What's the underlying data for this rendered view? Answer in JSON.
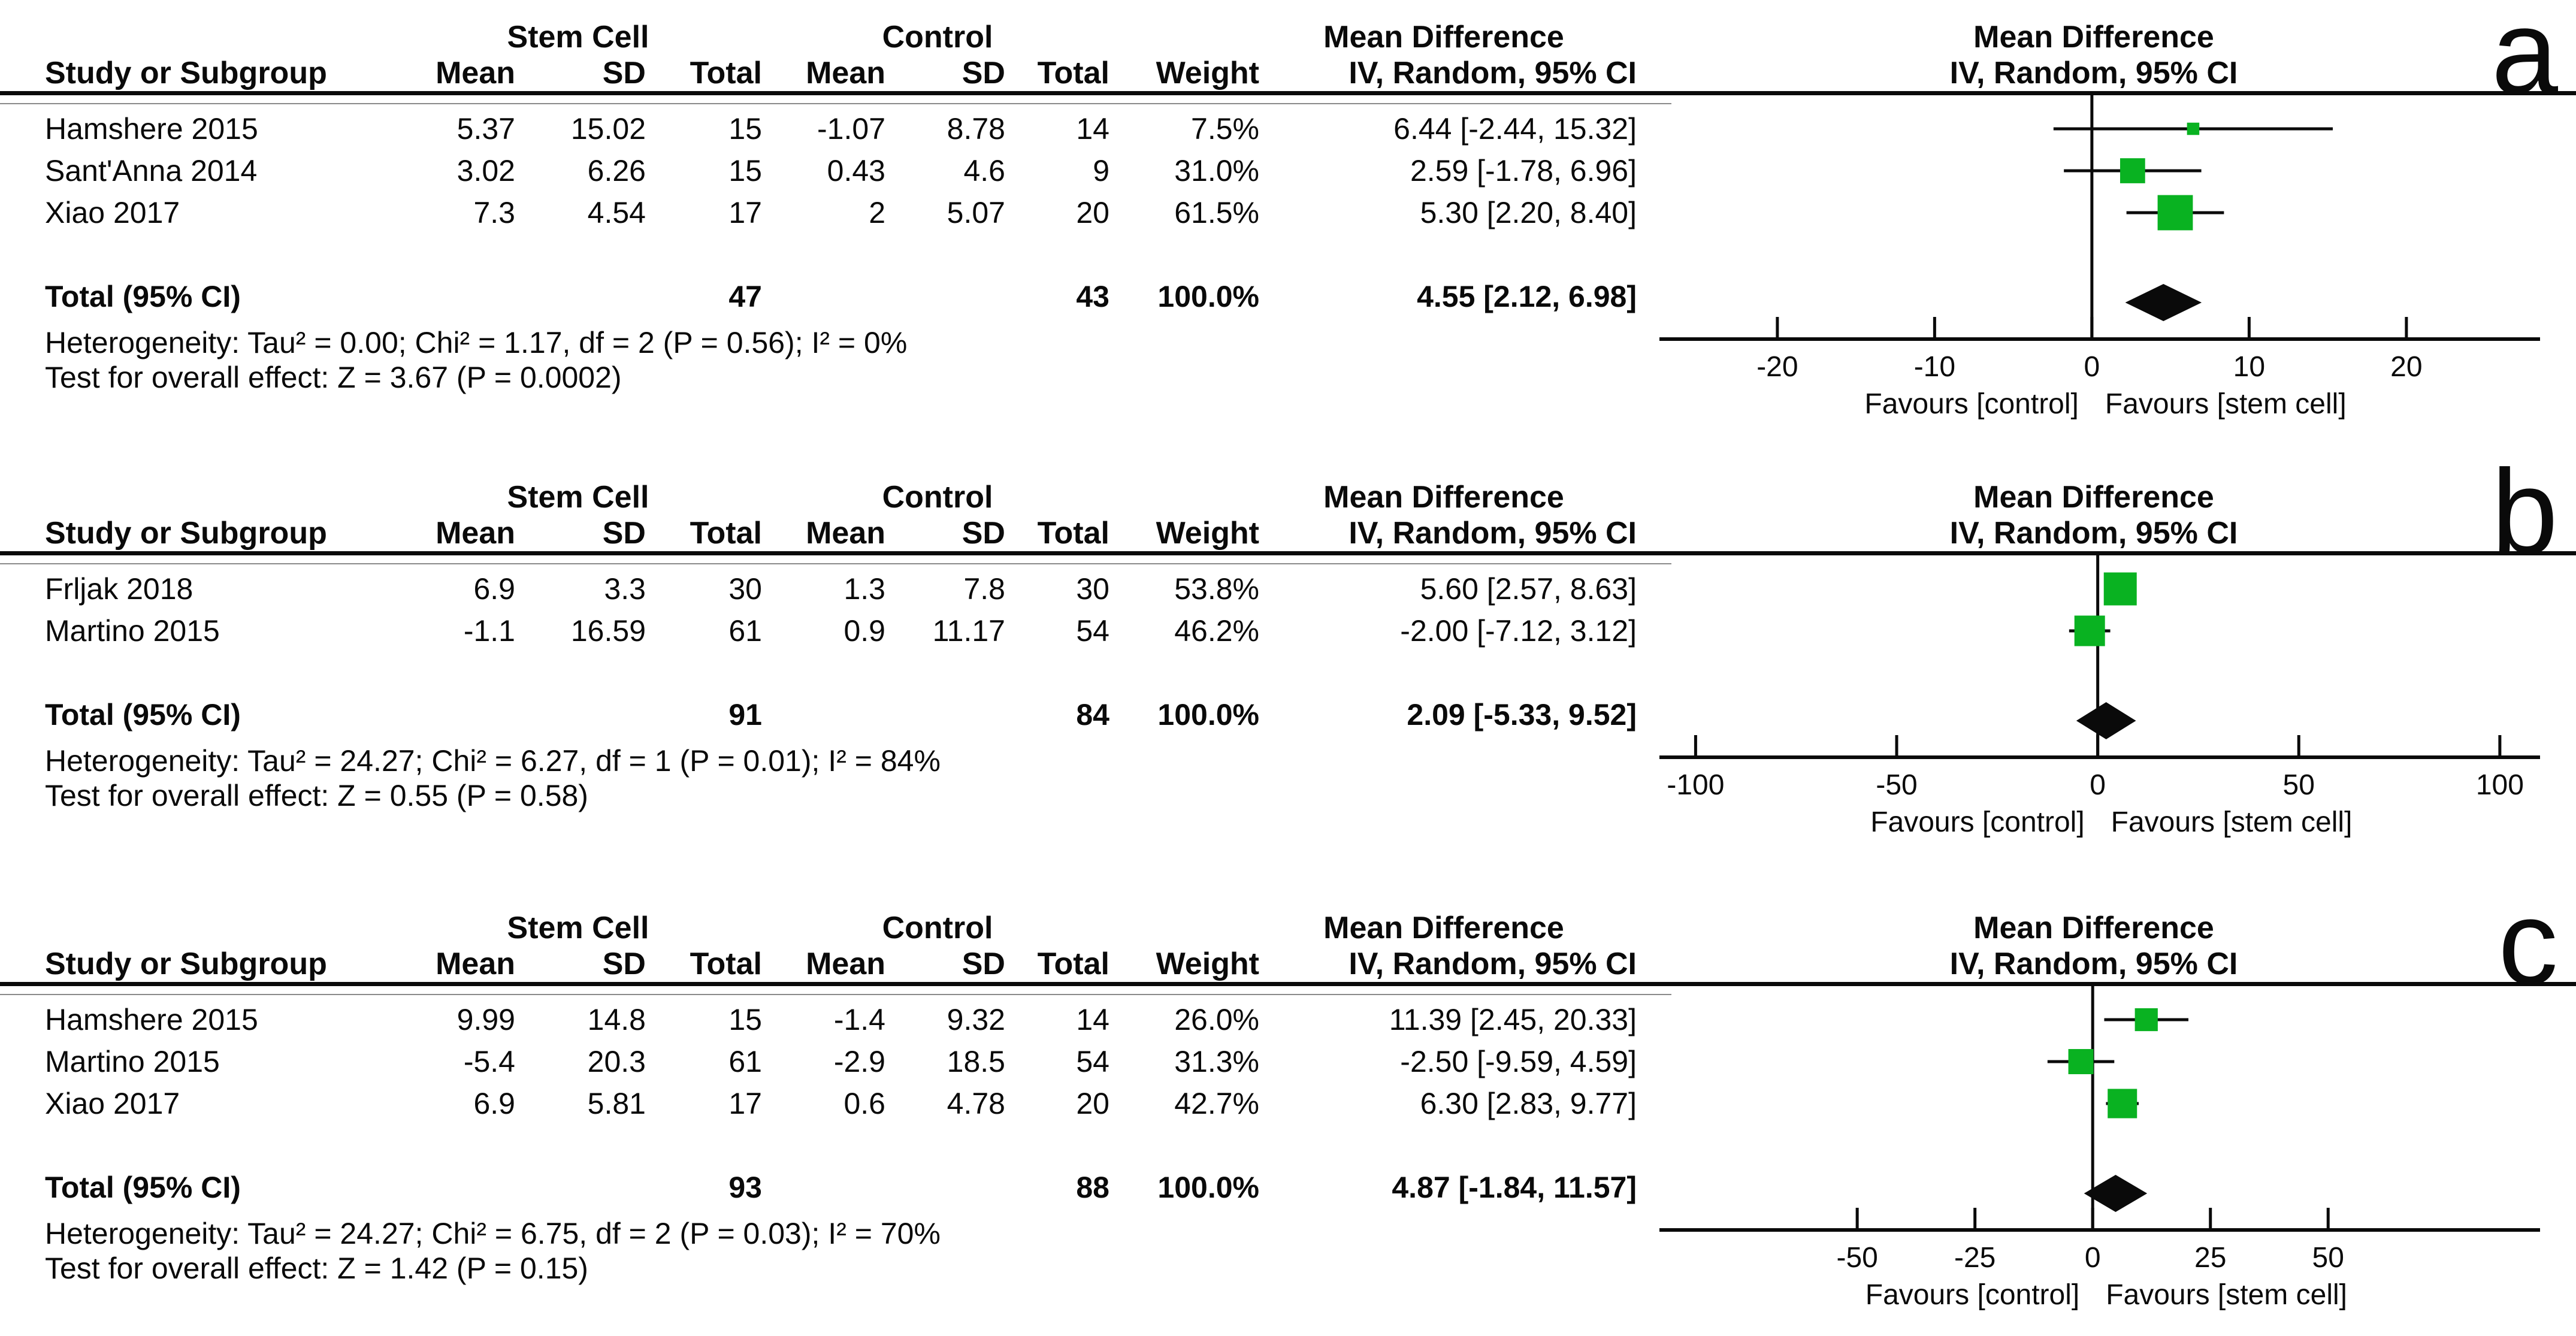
{
  "headers": {
    "study": "Study or Subgroup",
    "group1": "Stem Cell",
    "group2": "Control",
    "effect": "Mean Difference",
    "mean": "Mean",
    "sd": "SD",
    "total": "Total",
    "weight": "Weight",
    "method": "IV, Random, 95% CI"
  },
  "style": {
    "square_green": "#09b221",
    "diamond_black": "#0a0a0a",
    "axis_black": "#0a0a0a",
    "thin_rule_gray": "#8a8a8a"
  },
  "panels": [
    {
      "label": "a",
      "table": {
        "rows": [
          {
            "study": "Hamshere 2015",
            "sc_mean": "5.37",
            "sc_sd": "15.02",
            "sc_total": "15",
            "c_mean": "-1.07",
            "c_sd": "8.78",
            "c_total": "14",
            "weight": "7.5%",
            "md_ci": "6.44 [-2.44, 15.32]"
          },
          {
            "study": "Sant'Anna 2014",
            "sc_mean": "3.02",
            "sc_sd": "6.26",
            "sc_total": "15",
            "c_mean": "0.43",
            "c_sd": "4.6",
            "c_total": "9",
            "weight": "31.0%",
            "md_ci": "2.59 [-1.78, 6.96]"
          },
          {
            "study": "Xiao 2017",
            "sc_mean": "7.3",
            "sc_sd": "4.54",
            "sc_total": "17",
            "c_mean": "2",
            "c_sd": "5.07",
            "c_total": "20",
            "weight": "61.5%",
            "md_ci": "5.30 [2.20, 8.40]"
          }
        ],
        "total_row": {
          "label": "Total (95% CI)",
          "sc_total": "47",
          "c_total": "43",
          "weight": "100.0%",
          "md_ci": "4.55 [2.12, 6.98]"
        },
        "heterogeneity": "Heterogeneity: Tau² = 0.00; Chi² = 1.17, df = 2 (P = 0.56); I² = 0%",
        "overall_effect": "Test for overall effect: Z = 3.67 (P = 0.0002)"
      }
    },
    {
      "label": "b",
      "table": {
        "rows": [
          {
            "study": "Frljak 2018",
            "sc_mean": "6.9",
            "sc_sd": "3.3",
            "sc_total": "30",
            "c_mean": "1.3",
            "c_sd": "7.8",
            "c_total": "30",
            "weight": "53.8%",
            "md_ci": "5.60 [2.57, 8.63]"
          },
          {
            "study": "Martino 2015",
            "sc_mean": "-1.1",
            "sc_sd": "16.59",
            "sc_total": "61",
            "c_mean": "0.9",
            "c_sd": "11.17",
            "c_total": "54",
            "weight": "46.2%",
            "md_ci": "-2.00 [-7.12, 3.12]"
          }
        ],
        "total_row": {
          "label": "Total (95% CI)",
          "sc_total": "91",
          "c_total": "84",
          "weight": "100.0%",
          "md_ci": "2.09 [-5.33, 9.52]"
        },
        "heterogeneity": "Heterogeneity: Tau² = 24.27; Chi² = 6.27, df = 1 (P = 0.01); I² = 84%",
        "overall_effect": "Test for overall effect: Z = 0.55 (P = 0.58)"
      }
    },
    {
      "label": "c",
      "table": {
        "rows": [
          {
            "study": "Hamshere 2015",
            "sc_mean": "9.99",
            "sc_sd": "14.8",
            "sc_total": "15",
            "c_mean": "-1.4",
            "c_sd": "9.32",
            "c_total": "14",
            "weight": "26.0%",
            "md_ci": "11.39 [2.45, 20.33]"
          },
          {
            "study": "Martino 2015",
            "sc_mean": "-5.4",
            "sc_sd": "20.3",
            "sc_total": "61",
            "c_mean": "-2.9",
            "c_sd": "18.5",
            "c_total": "54",
            "weight": "31.3%",
            "md_ci": "-2.50 [-9.59, 4.59]"
          },
          {
            "study": "Xiao 2017",
            "sc_mean": "6.9",
            "sc_sd": "5.81",
            "sc_total": "17",
            "c_mean": "0.6",
            "c_sd": "4.78",
            "c_total": "20",
            "weight": "42.7%",
            "md_ci": "6.30 [2.83, 9.77]"
          }
        ],
        "total_row": {
          "label": "Total (95% CI)",
          "sc_total": "93",
          "c_total": "88",
          "weight": "100.0%",
          "md_ci": "4.87 [-1.84, 11.57]"
        },
        "heterogeneity": "Heterogeneity: Tau² = 24.27; Chi² = 6.75, df = 2 (P = 0.03); I² = 70%",
        "overall_effect": "Test for overall effect: Z = 1.42 (P = 0.15)"
      }
    }
  ],
  "chart_data": [
    {
      "type": "scatter",
      "panel": "a",
      "title": "Mean Difference",
      "subtitle": "IV, Random, 95% CI",
      "xlim": [
        -27.5,
        28.5
      ],
      "xticks": [
        -20,
        -10,
        0,
        10,
        20
      ],
      "xlabel_left": "Favours [control]",
      "xlabel_right": "Favours [stem cell]",
      "points": [
        {
          "study": "Hamshere 2015",
          "md": 6.44,
          "ci_low": -2.44,
          "ci_high": 15.32,
          "weight_pct": 7.5
        },
        {
          "study": "Sant'Anna 2014",
          "md": 2.59,
          "ci_low": -1.78,
          "ci_high": 6.96,
          "weight_pct": 31.0
        },
        {
          "study": "Xiao 2017",
          "md": 5.3,
          "ci_low": 2.2,
          "ci_high": 8.4,
          "weight_pct": 61.5
        }
      ],
      "total": {
        "md": 4.55,
        "ci_low": 2.12,
        "ci_high": 6.98
      }
    },
    {
      "type": "scatter",
      "panel": "b",
      "title": "Mean Difference",
      "subtitle": "IV, Random, 95% CI",
      "xlim": [
        -109,
        110
      ],
      "xticks": [
        -100,
        -50,
        0,
        50,
        100
      ],
      "xlabel_left": "Favours [control]",
      "xlabel_right": "Favours [stem cell]",
      "points": [
        {
          "study": "Frljak 2018",
          "md": 5.6,
          "ci_low": 2.57,
          "ci_high": 8.63,
          "weight_pct": 53.8
        },
        {
          "study": "Martino 2015",
          "md": -2.0,
          "ci_low": -7.12,
          "ci_high": 3.12,
          "weight_pct": 46.2
        }
      ],
      "total": {
        "md": 2.09,
        "ci_low": -5.33,
        "ci_high": 9.52
      }
    },
    {
      "type": "scatter",
      "panel": "c",
      "title": "Mean Difference",
      "subtitle": "IV, Random, 95% CI",
      "xlim": [
        -92,
        95
      ],
      "xticks": [
        -50,
        -25,
        0,
        25,
        50
      ],
      "xlabel_left": "Favours [control]",
      "xlabel_right": "Favours [stem cell]",
      "points": [
        {
          "study": "Hamshere 2015",
          "md": 11.39,
          "ci_low": 2.45,
          "ci_high": 20.33,
          "weight_pct": 26.0
        },
        {
          "study": "Martino 2015",
          "md": -2.5,
          "ci_low": -9.59,
          "ci_high": 4.59,
          "weight_pct": 31.3
        },
        {
          "study": "Xiao 2017",
          "md": 6.3,
          "ci_low": 2.83,
          "ci_high": 9.77,
          "weight_pct": 42.7
        }
      ],
      "total": {
        "md": 4.87,
        "ci_low": -1.84,
        "ci_high": 11.57
      }
    }
  ]
}
